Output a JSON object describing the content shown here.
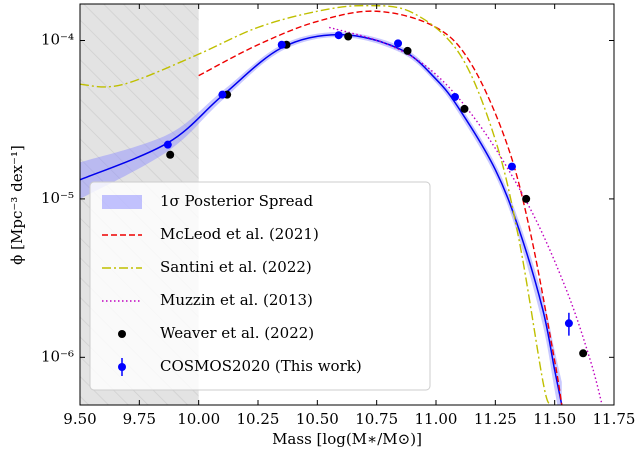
{
  "chart_data": {
    "type": "line",
    "x_label": "Mass [log(M∗/M⊙)]",
    "y_label": "ϕ [Mpc⁻³ dex⁻¹]",
    "xlim": [
      9.5,
      11.75
    ],
    "xticks": [
      {
        "value": 9.5,
        "label": "9.50"
      },
      9.75,
      {
        "value": 10,
        "label": "10.00"
      },
      10.25,
      {
        "value": 10.5,
        "label": "10.50"
      },
      10.75,
      {
        "value": 11,
        "label": "11.00"
      },
      11.25,
      {
        "value": 11.5,
        "label": "11.50"
      },
      11.75
    ],
    "ylim": [
      5e-07,
      0.00017
    ],
    "yticks": [
      {
        "value": 1e-06,
        "label": "10⁻⁶"
      },
      {
        "value": 1e-05,
        "label": "10⁻⁵"
      },
      {
        "value": 0.0001,
        "label": "10⁻⁴"
      }
    ],
    "y_scale": "log",
    "legend": "lower left",
    "shaded_xrange": [
      9.5,
      10.0
    ],
    "series": [
      {
        "name": "1σ Posterior Spread",
        "color": "#0000ee",
        "style": "band",
        "x": [
          9.5,
          9.87,
          10.1,
          10.35,
          10.6,
          10.85,
          11.0,
          11.1,
          11.25,
          11.35,
          11.45,
          11.5,
          11.53
        ],
        "values": [
          1.32e-05,
          2.26e-05,
          4.49e-05,
          9e-05,
          0.000109,
          8.8e-05,
          5.7e-05,
          3.66e-05,
          1.53e-05,
          6.4e-06,
          2e-06,
          8.3e-07,
          5e-07
        ],
        "lower": [
          1e-05,
          2e-05,
          4.2e-05,
          8.6e-05,
          0.000105,
          8.4e-05,
          5.4e-05,
          3.4e-05,
          1.4e-05,
          5.6e-06,
          1.6e-06,
          6.2e-07,
          3.5e-07
        ],
        "upper": [
          1.7e-05,
          2.55e-05,
          4.8e-05,
          9.4e-05,
          0.000113,
          9.2e-05,
          6e-05,
          3.9e-05,
          1.66e-05,
          7.2e-06,
          2.4e-06,
          1.1e-06,
          7e-07
        ]
      },
      {
        "name": "McLeod et al. (2021)",
        "color": "#ee0000",
        "style": "dashed",
        "x": [
          10.0,
          10.25,
          10.5,
          10.75,
          11.0,
          11.15,
          11.3,
          11.4,
          11.5,
          11.53
        ],
        "values": [
          6e-05,
          9.4e-05,
          0.000132,
          0.000153,
          0.000121,
          7.05e-05,
          2.2e-05,
          5.9e-06,
          9.5e-07,
          5e-07
        ]
      },
      {
        "name": "Santini et al. (2022)",
        "color": "#bfbf00",
        "style": "dashdot",
        "x": [
          9.5,
          9.62,
          9.75,
          10.0,
          10.25,
          10.5,
          10.7,
          10.9,
          11.1,
          11.25,
          11.35,
          11.45,
          11.48
        ],
        "values": [
          5.3e-05,
          5.1e-05,
          5.7e-05,
          8.2e-05,
          0.000121,
          0.000153,
          0.000166,
          0.00015,
          8.2e-05,
          2.36e-05,
          5.5e-06,
          7.1e-07,
          5e-07
        ]
      },
      {
        "name": "Muzzin et al. (2013)",
        "color": "#bf00bf",
        "style": "dotted",
        "x": [
          10.55,
          10.8,
          11.0,
          11.2,
          11.4,
          11.55,
          11.65,
          11.7
        ],
        "values": [
          0.000121,
          9.4e-05,
          6.1e-05,
          2.7e-05,
          8.5e-06,
          2.65e-06,
          9.6e-07,
          5e-07
        ]
      },
      {
        "name": "Weaver et al. (2022)",
        "color": "#000000",
        "style": "points",
        "x": [
          9.88,
          10.12,
          10.37,
          10.63,
          10.88,
          11.12,
          11.38,
          11.62
        ],
        "values": [
          1.9e-05,
          4.55e-05,
          9.4e-05,
          0.000106,
          8.6e-05,
          3.7e-05,
          1e-05,
          1.06e-06
        ]
      },
      {
        "name": "COSMOS2020 (This work)",
        "color": "#0000ff",
        "style": "errorbar",
        "x": [
          9.87,
          10.1,
          10.35,
          10.59,
          10.84,
          11.08,
          11.32,
          11.56
        ],
        "values": [
          2.2e-05,
          4.55e-05,
          9.4e-05,
          0.000108,
          9.6e-05,
          4.4e-05,
          1.6e-05,
          1.64e-06
        ],
        "errors": [
          null,
          null,
          null,
          null,
          null,
          null,
          null,
          2.7e-07
        ]
      }
    ]
  }
}
